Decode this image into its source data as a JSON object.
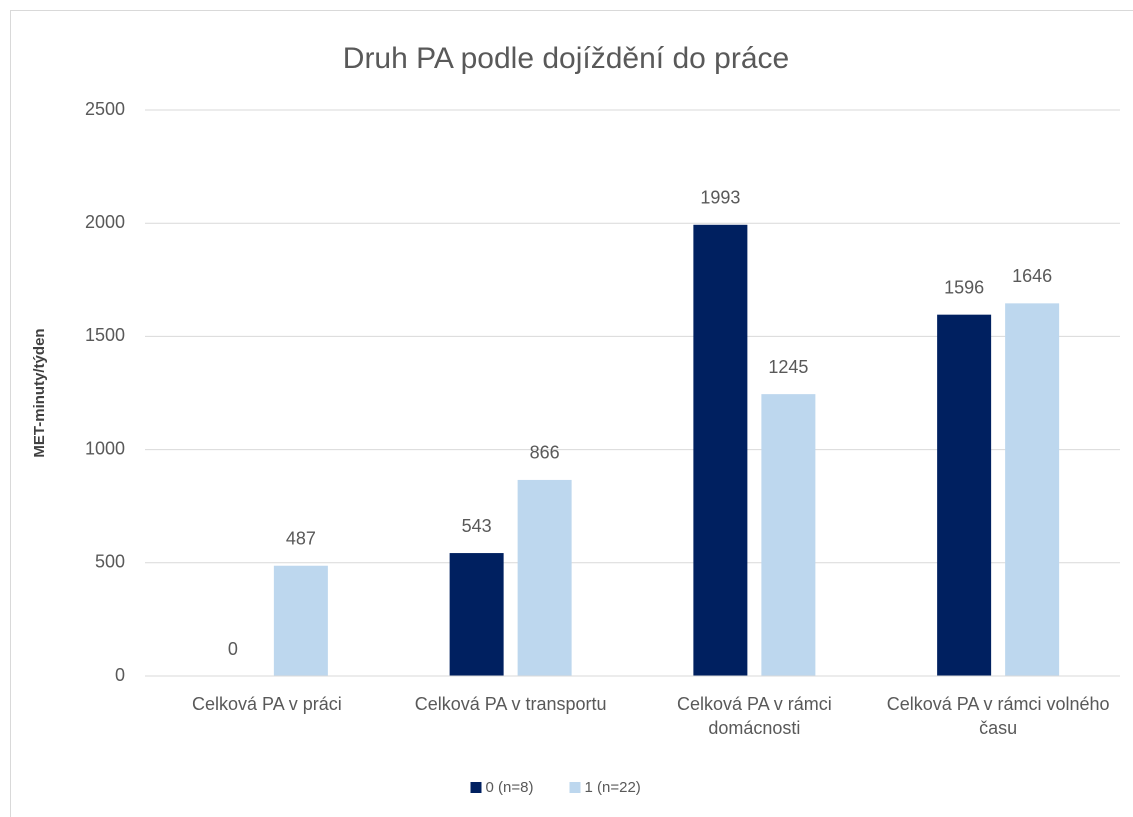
{
  "chart_data": {
    "type": "bar",
    "title": "Druh PA podle dojíždění do práce",
    "y_label": "MET-minuty/týden",
    "categories": [
      "Celková PA v práci",
      "Celková PA v transportu",
      "Celková PA v rámci domácnosti",
      "Celková PA v rámci volného času"
    ],
    "series": [
      {
        "name": "0 (n=8)",
        "color": "#002060",
        "values": [
          0,
          543,
          1993,
          1596
        ]
      },
      {
        "name": "1 (n=22)",
        "color": "#bdd7ee",
        "values": [
          487,
          866,
          1245,
          1646
        ]
      }
    ],
    "ylim": [
      0,
      2500
    ],
    "yticks": [
      0,
      500,
      1000,
      1500,
      2000,
      2500
    ],
    "grid": true,
    "legend": "bottom"
  }
}
